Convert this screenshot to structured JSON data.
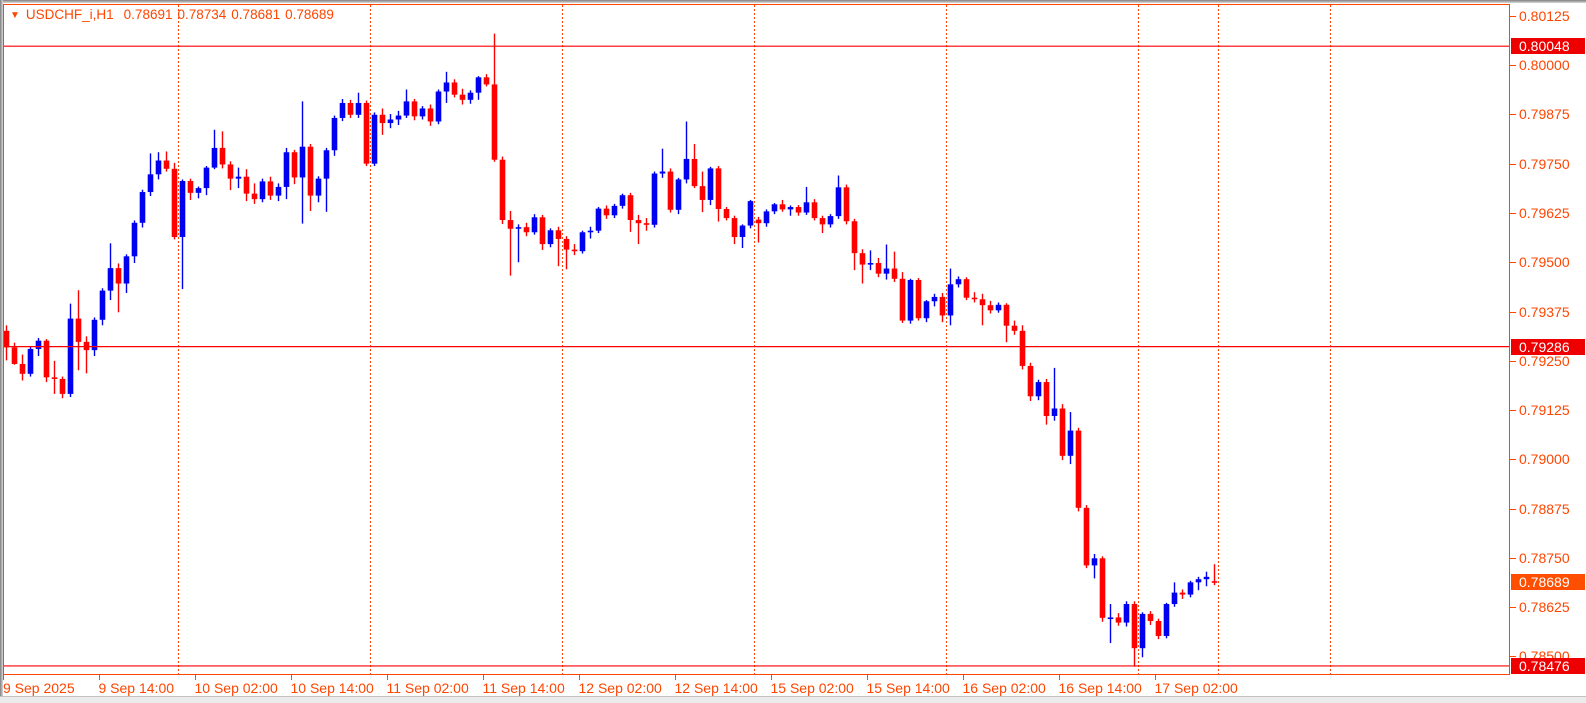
{
  "title": {
    "symbol": "USDCHF_i,H1",
    "open": "0.78691",
    "high": "0.78734",
    "low": "0.78681",
    "close": "0.78689"
  },
  "colors": {
    "accent": "#ff4500",
    "bull": "#0000f0",
    "bear": "#ff0000",
    "price_line": "#ff0000",
    "level_badge_bg": "#ee0000",
    "current_badge_bg": "#ff4e00",
    "background": "#ffffff"
  },
  "chart_data": {
    "type": "candlestick",
    "symbol": "USDCHF_i",
    "timeframe": "H1",
    "ylim": [
      0.78453,
      0.80155
    ],
    "grid": false,
    "y_ticks": [
      "0.80125",
      "0.80000",
      "0.79875",
      "0.79750",
      "0.79625",
      "0.79500",
      "0.79375",
      "0.79250",
      "0.79125",
      "0.79000",
      "0.78875",
      "0.78750",
      "0.78625",
      "0.78500"
    ],
    "price_lines": [
      0.80048,
      0.79286,
      0.78476
    ],
    "price_line_labels": [
      "0.80048",
      "0.79286",
      "0.78476"
    ],
    "current_price": 0.78689,
    "current_price_label": "0.78689",
    "x_labels": [
      {
        "index": 0,
        "text": "9 Sep 2025"
      },
      {
        "index": 12,
        "text": "9 Sep 14:00"
      },
      {
        "index": 24,
        "text": "10 Sep 02:00"
      },
      {
        "index": 36,
        "text": "10 Sep 14:00"
      },
      {
        "index": 48,
        "text": "11 Sep 02:00"
      },
      {
        "index": 60,
        "text": "11 Sep 14:00"
      },
      {
        "index": 72,
        "text": "12 Sep 02:00"
      },
      {
        "index": 84,
        "text": "12 Sep 14:00"
      },
      {
        "index": 96,
        "text": "15 Sep 02:00"
      },
      {
        "index": 108,
        "text": "15 Sep 14:00"
      },
      {
        "index": 120,
        "text": "16 Sep 02:00"
      },
      {
        "index": 132,
        "text": "16 Sep 14:00"
      },
      {
        "index": 144,
        "text": "17 Sep 02:00"
      }
    ],
    "days": [
      {
        "date": "9 Sep 2025",
        "start_hour": 2,
        "candles": [
          [
            0.79326,
            0.7934,
            0.79251,
            0.79284
          ],
          [
            0.79284,
            0.79296,
            0.7924,
            0.79242
          ],
          [
            0.79242,
            0.79266,
            0.792,
            0.79217
          ],
          [
            0.79217,
            0.79286,
            0.7921,
            0.7928
          ],
          [
            0.7928,
            0.79308,
            0.79262,
            0.79301
          ],
          [
            0.79301,
            0.79305,
            0.79196,
            0.79208
          ],
          [
            0.79208,
            0.7925,
            0.79166,
            0.79204
          ],
          [
            0.79204,
            0.7921,
            0.79155,
            0.79166
          ],
          [
            0.79166,
            0.79395,
            0.79158,
            0.79357
          ],
          [
            0.79357,
            0.79429,
            0.79226,
            0.79298
          ],
          [
            0.79298,
            0.79312,
            0.79218,
            0.79277
          ],
          [
            0.79277,
            0.7936,
            0.79262,
            0.79354
          ],
          [
            0.79354,
            0.79434,
            0.7934,
            0.79428
          ],
          [
            0.79428,
            0.79548,
            0.79404,
            0.79485
          ],
          [
            0.79485,
            0.79497,
            0.79373,
            0.79446
          ],
          [
            0.79446,
            0.7952,
            0.79422,
            0.79515
          ],
          [
            0.79515,
            0.79606,
            0.79498,
            0.796
          ],
          [
            0.796,
            0.79684,
            0.79588,
            0.79678
          ],
          [
            0.79678,
            0.79776,
            0.79668,
            0.79723
          ],
          [
            0.79723,
            0.79779,
            0.7971,
            0.79758
          ],
          [
            0.79758,
            0.79781,
            0.7973,
            0.79737
          ],
          [
            0.79737,
            0.79752,
            0.79558,
            0.79564
          ]
        ]
      },
      {
        "date": "10 Sep 2025",
        "start_hour": 0,
        "candles": [
          [
            0.79564,
            0.7971,
            0.79432,
            0.79706
          ],
          [
            0.79706,
            0.79712,
            0.79658,
            0.79676
          ],
          [
            0.79676,
            0.79692,
            0.79662,
            0.79688
          ],
          [
            0.79688,
            0.79744,
            0.7967,
            0.7974
          ],
          [
            0.7974,
            0.79836,
            0.79736,
            0.7979
          ],
          [
            0.7979,
            0.79832,
            0.79738,
            0.79748
          ],
          [
            0.79748,
            0.79756,
            0.79683,
            0.79712
          ],
          [
            0.79712,
            0.7974,
            0.79688,
            0.79717
          ],
          [
            0.79717,
            0.79736,
            0.79655,
            0.79674
          ],
          [
            0.79674,
            0.797,
            0.79648,
            0.7966
          ],
          [
            0.7966,
            0.79712,
            0.79652,
            0.79705
          ],
          [
            0.79705,
            0.79717,
            0.79658,
            0.79669
          ],
          [
            0.79669,
            0.797,
            0.79655,
            0.79691
          ],
          [
            0.79691,
            0.7979,
            0.7966,
            0.79779
          ],
          [
            0.79779,
            0.79785,
            0.79698,
            0.79715
          ],
          [
            0.79715,
            0.79908,
            0.79598,
            0.79793
          ],
          [
            0.79793,
            0.798,
            0.7963,
            0.79669
          ],
          [
            0.79669,
            0.79718,
            0.79652,
            0.79712
          ],
          [
            0.79712,
            0.7979,
            0.79628,
            0.79784
          ],
          [
            0.79784,
            0.79872,
            0.7977,
            0.79866
          ],
          [
            0.79866,
            0.79914,
            0.79858,
            0.79904
          ],
          [
            0.79904,
            0.79912,
            0.79866,
            0.79874
          ],
          [
            0.79874,
            0.7993,
            0.79866,
            0.79904
          ],
          [
            0.79904,
            0.7991,
            0.79744,
            0.7975
          ]
        ]
      },
      {
        "date": "11 Sep 2025",
        "start_hour": 0,
        "candles": [
          [
            0.7975,
            0.7988,
            0.79744,
            0.79874
          ],
          [
            0.79874,
            0.7989,
            0.79823,
            0.79853
          ],
          [
            0.79853,
            0.79876,
            0.7984,
            0.79862
          ],
          [
            0.79862,
            0.79884,
            0.79848,
            0.79872
          ],
          [
            0.79872,
            0.79938,
            0.79866,
            0.79908
          ],
          [
            0.79908,
            0.79914,
            0.7986,
            0.7987
          ],
          [
            0.7987,
            0.79896,
            0.79862,
            0.7989
          ],
          [
            0.7989,
            0.799,
            0.79846,
            0.79857
          ],
          [
            0.79857,
            0.79938,
            0.7985,
            0.79933
          ],
          [
            0.79933,
            0.79983,
            0.79904,
            0.79956
          ],
          [
            0.79956,
            0.79964,
            0.79918,
            0.79925
          ],
          [
            0.79925,
            0.7994,
            0.799,
            0.79912
          ],
          [
            0.79912,
            0.79936,
            0.79902,
            0.7993
          ],
          [
            0.7993,
            0.79972,
            0.79912,
            0.79969
          ],
          [
            0.79969,
            0.79977,
            0.79946,
            0.79951
          ],
          [
            0.79951,
            0.8008,
            0.79755,
            0.7976
          ],
          [
            0.7976,
            0.79768,
            0.79597,
            0.79607
          ],
          [
            0.79607,
            0.7963,
            0.79466,
            0.79585
          ],
          [
            0.79585,
            0.79596,
            0.795,
            0.79589
          ],
          [
            0.79589,
            0.796,
            0.79566,
            0.79576
          ],
          [
            0.79576,
            0.79622,
            0.7957,
            0.79614
          ],
          [
            0.79614,
            0.7962,
            0.79531,
            0.79546
          ],
          [
            0.79546,
            0.79586,
            0.79538,
            0.79581
          ],
          [
            0.79581,
            0.7959,
            0.7949,
            0.79559
          ]
        ]
      },
      {
        "date": "12 Sep 2025",
        "start_hour": 0,
        "candles": [
          [
            0.79559,
            0.79566,
            0.79482,
            0.79532
          ],
          [
            0.79532,
            0.79546,
            0.79518,
            0.79528
          ],
          [
            0.79528,
            0.7958,
            0.79522,
            0.79576
          ],
          [
            0.79576,
            0.7959,
            0.7956,
            0.7958
          ],
          [
            0.7958,
            0.7964,
            0.79574,
            0.79636
          ],
          [
            0.79636,
            0.79644,
            0.7961,
            0.79619
          ],
          [
            0.79619,
            0.79648,
            0.79612,
            0.79643
          ],
          [
            0.79643,
            0.79674,
            0.79636,
            0.7967
          ],
          [
            0.7967,
            0.79676,
            0.79577,
            0.79607
          ],
          [
            0.79607,
            0.7962,
            0.79546,
            0.79599
          ],
          [
            0.79599,
            0.79612,
            0.7958,
            0.79595
          ],
          [
            0.79595,
            0.7973,
            0.79588,
            0.79725
          ],
          [
            0.79725,
            0.79788,
            0.79714,
            0.7973
          ],
          [
            0.7973,
            0.79738,
            0.79626,
            0.79633
          ],
          [
            0.79633,
            0.79714,
            0.79622,
            0.7971
          ],
          [
            0.7971,
            0.79857,
            0.797,
            0.79762
          ],
          [
            0.79762,
            0.798,
            0.79688,
            0.79693
          ],
          [
            0.79693,
            0.7973,
            0.79627,
            0.79658
          ],
          [
            0.79658,
            0.79742,
            0.79645,
            0.79738
          ],
          [
            0.79738,
            0.79744,
            0.79603,
            0.79635
          ],
          [
            0.79635,
            0.7964,
            0.79606,
            0.79612
          ],
          [
            0.79612,
            0.79618,
            0.79546,
            0.79564
          ],
          [
            0.79564,
            0.79596,
            0.79536,
            0.79593
          ],
          [
            0.79593,
            0.79658,
            0.79586,
            0.79655
          ]
        ]
      },
      {
        "date": "15 Sep 2025",
        "start_hour": 0,
        "candles": [
          [
            0.79608,
            0.79615,
            0.7955,
            0.79599
          ],
          [
            0.79599,
            0.79634,
            0.7959,
            0.79629
          ],
          [
            0.79629,
            0.7965,
            0.79622,
            0.79647
          ],
          [
            0.79647,
            0.79658,
            0.79628,
            0.79634
          ],
          [
            0.79634,
            0.79644,
            0.79618,
            0.7964
          ],
          [
            0.7964,
            0.79645,
            0.79618,
            0.79626
          ],
          [
            0.79626,
            0.79691,
            0.7962,
            0.79652
          ],
          [
            0.79652,
            0.7966,
            0.79606,
            0.79612
          ],
          [
            0.79612,
            0.79618,
            0.79574,
            0.79596
          ],
          [
            0.79596,
            0.79622,
            0.79588,
            0.79617
          ],
          [
            0.79617,
            0.7972,
            0.7961,
            0.7969
          ],
          [
            0.7969,
            0.79697,
            0.79596,
            0.79604
          ],
          [
            0.79604,
            0.7961,
            0.7948,
            0.79523
          ],
          [
            0.79523,
            0.79533,
            0.79446,
            0.79494
          ],
          [
            0.79494,
            0.7953,
            0.7948,
            0.79498
          ],
          [
            0.79498,
            0.79511,
            0.79462,
            0.79471
          ],
          [
            0.79471,
            0.79545,
            0.79456,
            0.79484
          ],
          [
            0.79484,
            0.79527,
            0.7945,
            0.79458
          ],
          [
            0.79458,
            0.79475,
            0.79346,
            0.79352
          ],
          [
            0.79352,
            0.79458,
            0.79344,
            0.79455
          ],
          [
            0.79455,
            0.7946,
            0.79352,
            0.79358
          ],
          [
            0.79358,
            0.79404,
            0.79348,
            0.79401
          ],
          [
            0.79401,
            0.7942,
            0.79388,
            0.79412
          ],
          [
            0.79412,
            0.79422,
            0.79348,
            0.79365
          ]
        ]
      },
      {
        "date": "16 Sep 2025",
        "start_hour": 0,
        "candles": [
          [
            0.79365,
            0.79484,
            0.7934,
            0.79444
          ],
          [
            0.79444,
            0.79464,
            0.79436,
            0.79457
          ],
          [
            0.79457,
            0.79462,
            0.79404,
            0.7941
          ],
          [
            0.7941,
            0.79424,
            0.79398,
            0.79406
          ],
          [
            0.79406,
            0.7942,
            0.7934,
            0.79391
          ],
          [
            0.79391,
            0.79402,
            0.7937,
            0.79378
          ],
          [
            0.79378,
            0.79398,
            0.79372,
            0.79392
          ],
          [
            0.79392,
            0.79396,
            0.79297,
            0.79339
          ],
          [
            0.79339,
            0.79352,
            0.79316,
            0.79326
          ],
          [
            0.79326,
            0.7934,
            0.79228,
            0.79237
          ],
          [
            0.79237,
            0.79245,
            0.79148,
            0.7916
          ],
          [
            0.7916,
            0.79202,
            0.7915,
            0.79196
          ],
          [
            0.79196,
            0.79204,
            0.79088,
            0.7911
          ],
          [
            0.7911,
            0.79232,
            0.79098,
            0.79129
          ],
          [
            0.79129,
            0.7914,
            0.78998,
            0.79009
          ],
          [
            0.79009,
            0.7912,
            0.78988,
            0.79073
          ],
          [
            0.79073,
            0.7908,
            0.78868,
            0.78877
          ],
          [
            0.78877,
            0.78884,
            0.78724,
            0.78731
          ],
          [
            0.78731,
            0.7876,
            0.78698,
            0.78749
          ],
          [
            0.78749,
            0.78754,
            0.78588,
            0.78598
          ],
          [
            0.78598,
            0.78633,
            0.78534,
            0.78599
          ],
          [
            0.78599,
            0.7861,
            0.78578,
            0.78586
          ],
          [
            0.78586,
            0.7864,
            0.78576,
            0.78633
          ],
          [
            0.78633,
            0.7864,
            0.78474,
            0.78521
          ]
        ]
      },
      {
        "date": "17 Sep 2025",
        "start_hour": 0,
        "candles": [
          [
            0.78521,
            0.78612,
            0.78498,
            0.78608
          ],
          [
            0.78608,
            0.78615,
            0.7858,
            0.7859
          ],
          [
            0.7859,
            0.78596,
            0.78544,
            0.78552
          ],
          [
            0.78552,
            0.78636,
            0.78546,
            0.78633
          ],
          [
            0.78633,
            0.78688,
            0.78626,
            0.78662
          ],
          [
            0.78662,
            0.7867,
            0.78646,
            0.78657
          ],
          [
            0.78657,
            0.78692,
            0.7865,
            0.78688
          ],
          [
            0.78688,
            0.78702,
            0.78668,
            0.78696
          ],
          [
            0.78696,
            0.78715,
            0.78678,
            0.78702
          ],
          [
            0.78691,
            0.78734,
            0.78681,
            0.78689
          ]
        ]
      }
    ]
  }
}
